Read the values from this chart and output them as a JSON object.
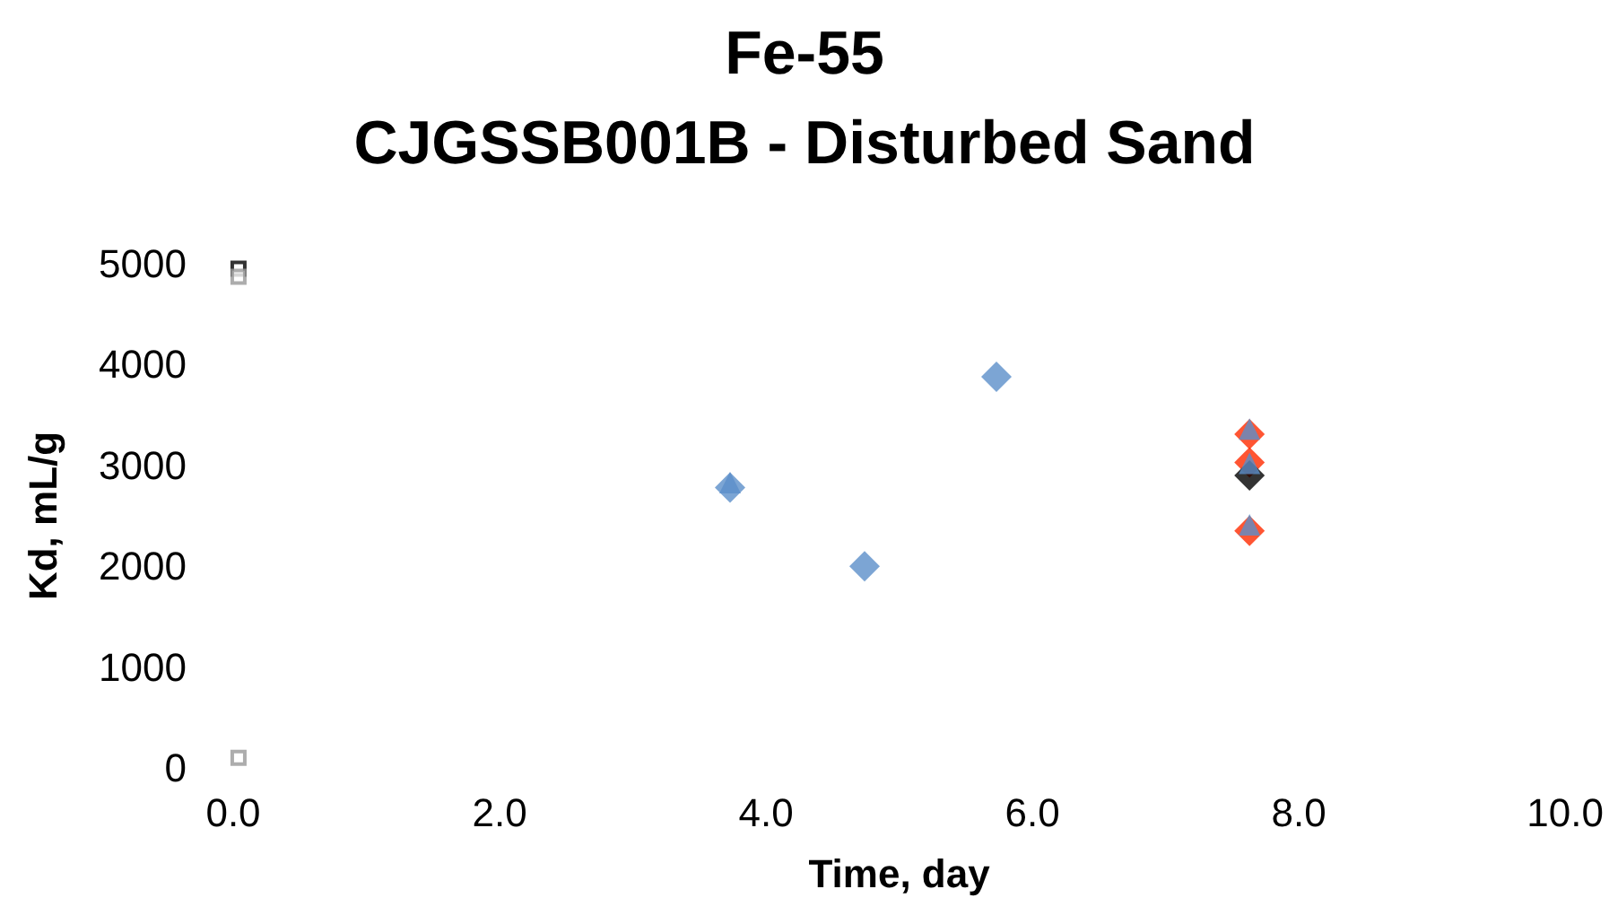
{
  "chart_data": {
    "type": "scatter",
    "title": "Fe-55",
    "subtitle": "CJGSSB001B - Disturbed Sand",
    "xlabel": "Time, day",
    "ylabel": "Kd, mL/g",
    "xlim": [
      0,
      10
    ],
    "xticks": [
      {
        "value": 0,
        "label": "0.0"
      },
      {
        "value": 2,
        "label": "2.0"
      },
      {
        "value": 4,
        "label": "4.0"
      },
      {
        "value": 6,
        "label": "6.0"
      },
      {
        "value": 8,
        "label": "8.0"
      },
      {
        "value": 10,
        "label": "10.0"
      }
    ],
    "ylim": [
      0,
      5000
    ],
    "yticks": [
      0,
      1000,
      2000,
      3000,
      4000,
      5000
    ],
    "grid": false,
    "series": [
      {
        "color": "#5b8fc9",
        "marker": "diamond",
        "x": [
          3.73,
          4.74,
          5.73
        ],
        "values": [
          2780,
          2000,
          3880
        ]
      },
      {
        "color": "#ff2a00",
        "marker": "diamond",
        "x": [
          7.63,
          7.63,
          7.63
        ],
        "values": [
          3310,
          3030,
          2350
        ]
      },
      {
        "color": "#000000",
        "marker": "diamond",
        "x": [
          7.63
        ],
        "values": [
          2900
        ]
      },
      {
        "color": "#5b8fc9",
        "marker": "triangle",
        "x": [
          3.73,
          7.63,
          7.63,
          7.63
        ],
        "values": [
          2830,
          3360,
          3020,
          2410
        ]
      },
      {
        "color": "#000000",
        "marker": "square",
        "x": [
          0.04
        ],
        "values": [
          4950
        ]
      },
      {
        "color": "#999999",
        "marker": "square",
        "x": [
          0.04,
          0.04
        ],
        "values": [
          4870,
          100
        ]
      }
    ]
  }
}
